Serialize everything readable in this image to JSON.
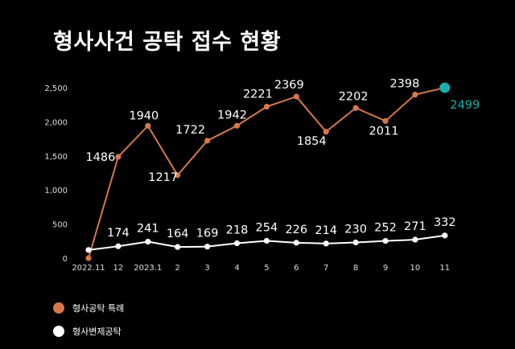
{
  "title": "형사사건 공탁 접수 현황",
  "colors": {
    "background": "#000000",
    "series1": "#d6784a",
    "series2": "#ffffff",
    "highlight": "#1ab0aa",
    "axis_text": "#dddddd",
    "gridline": "#555555"
  },
  "chart_data": {
    "type": "line",
    "title": "형사사건 공탁 접수 현황",
    "x": [
      "2022.11",
      "12",
      "2023.1",
      "2",
      "3",
      "4",
      "5",
      "6",
      "7",
      "8",
      "9",
      "10",
      "11"
    ],
    "y_ticks": [
      "0",
      "500",
      "1,000",
      "1,500",
      "2,000",
      "2,500"
    ],
    "ylim": [
      0,
      2500
    ],
    "grid": false,
    "legend_position": "bottom-left",
    "series": [
      {
        "name": "형사공탁 특례",
        "values": [
          0,
          1486,
          1940,
          1217,
          1722,
          1942,
          2221,
          2369,
          1854,
          2202,
          2011,
          2398,
          2499
        ],
        "labels": [
          "",
          "1486",
          "1940",
          "1217",
          "1722",
          "1942",
          "2221",
          "2369",
          "1854",
          "2202",
          "2011",
          "2398",
          "2499"
        ]
      },
      {
        "name": "형사변제공탁",
        "values": [
          120,
          174,
          241,
          164,
          169,
          218,
          254,
          226,
          214,
          230,
          252,
          271,
          332
        ],
        "labels": [
          "",
          "174",
          "241",
          "164",
          "169",
          "218",
          "254",
          "226",
          "214",
          "230",
          "252",
          "271",
          "332"
        ]
      }
    ]
  },
  "legend": [
    {
      "label": "형사공탁 특례",
      "color": "#d6784a"
    },
    {
      "label": "형사변제공탁",
      "color": "#ffffff"
    }
  ]
}
